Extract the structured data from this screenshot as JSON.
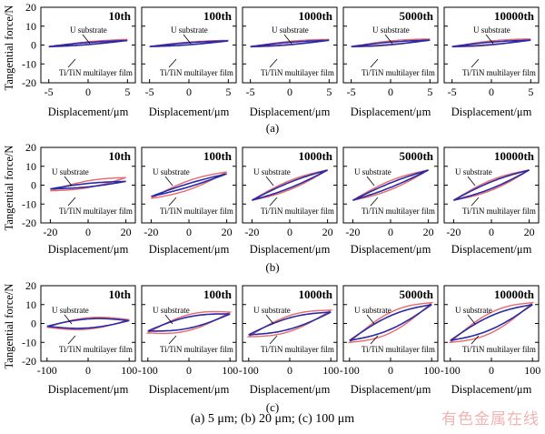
{
  "figure_caption": "(a) 5 μm; (b) 20 μm; (c) 100 μm",
  "watermark": "有色金属在线",
  "colors": {
    "u_substrate": "#e86a6a",
    "multilayer": "#2a2aa8",
    "axis": "#000000"
  },
  "chart_data": {
    "type": "line",
    "ylabel": "Tangential force/N",
    "xlabel": "Displacement/μm",
    "cycles": [
      "10th",
      "100th",
      "1000th",
      "5000th",
      "10000th"
    ],
    "labels": {
      "u": "U substrate",
      "f": "Ti/TiN multilayer film"
    },
    "rows": [
      {
        "label": "(a)",
        "amplitude_um": 5,
        "xlim": [
          -6,
          6
        ],
        "xticks": [
          -5,
          0,
          5
        ],
        "ylim": [
          -20,
          20
        ],
        "yticks": [
          -20,
          -10,
          0,
          10,
          20
        ],
        "loops": {
          "u": [
            [
              -5,
              -1,
              3,
              1.2
            ],
            [
              -5,
              -0.8,
              2.5,
              1.2
            ],
            [
              -5,
              -1,
              3,
              1.6
            ],
            [
              -5,
              -1,
              3.2,
              1.8
            ],
            [
              -5,
              -1,
              3.2,
              1.8
            ]
          ],
          "f": [
            [
              -5,
              -0.8,
              2.4,
              0.9
            ],
            [
              -5,
              -0.8,
              2.2,
              0.9
            ],
            [
              -5,
              -0.8,
              2.5,
              1.0
            ],
            [
              -5,
              -0.8,
              2.6,
              1.1
            ],
            [
              -5,
              -0.8,
              2.6,
              1.1
            ]
          ]
        }
      },
      {
        "label": "(b)",
        "amplitude_um": 20,
        "xlim": [
          -25,
          25
        ],
        "xticks": [
          -20,
          0,
          20
        ],
        "ylim": [
          -20,
          20
        ],
        "yticks": [
          -20,
          -10,
          0,
          10,
          20
        ],
        "loops": {
          "u": [
            [
              -20,
              -3,
              4,
              3
            ],
            [
              -20,
              -7,
              7,
              4
            ],
            [
              -20,
              -8,
              8,
              4
            ],
            [
              -20,
              -8,
              8,
              4
            ],
            [
              -20,
              -8,
              8,
              4.5
            ]
          ],
          "f": [
            [
              -20,
              -2,
              2,
              1.5
            ],
            [
              -20,
              -6,
              6,
              1.5
            ],
            [
              -20,
              -8,
              8,
              2.5
            ],
            [
              -20,
              -8,
              8,
              2
            ],
            [
              -20,
              -8,
              8,
              3
            ]
          ]
        }
      },
      {
        "label": "(c)",
        "amplitude_um": 100,
        "xlim": [
          -115,
          115
        ],
        "xticks": [
          -100,
          0,
          100
        ],
        "ylim": [
          -20,
          20
        ],
        "yticks": [
          -20,
          -10,
          0,
          10,
          20
        ],
        "loops": {
          "u": [
            [
              -100,
              -2,
              2,
              5
            ],
            [
              -100,
              -5,
              6,
              7
            ],
            [
              -100,
              -7,
              7,
              7
            ],
            [
              -100,
              -10,
              11,
              9
            ],
            [
              -100,
              -10,
              11,
              9
            ]
          ],
          "f": [
            [
              -100,
              -1.5,
              1.5,
              4
            ],
            [
              -100,
              -4,
              5,
              5
            ],
            [
              -100,
              -6,
              6,
              5
            ],
            [
              -100,
              -9,
              10,
              6
            ],
            [
              -100,
              -9,
              10,
              6
            ]
          ]
        }
      }
    ]
  }
}
